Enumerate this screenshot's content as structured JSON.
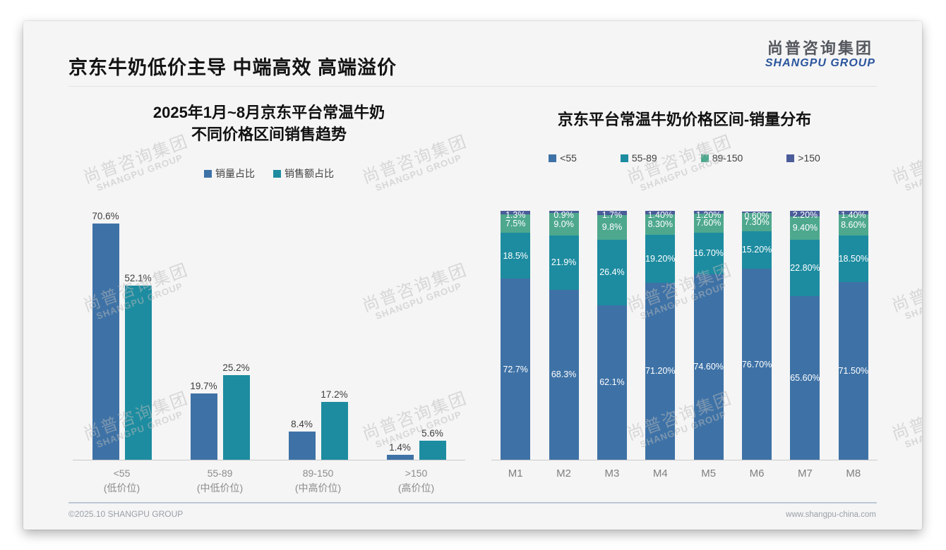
{
  "page": {
    "main_title": "京东牛奶低价主导 中端高效 高端溢价",
    "logo": {
      "cn": "尚普咨询集团",
      "en": "SHANGPU GROUP"
    },
    "watermark": {
      "cn": "尚普咨询集团",
      "en": "SHANGPU GROUP"
    },
    "footer": {
      "left": "©2025.10 SHANGPU GROUP",
      "right": "www.shangpu-china.com"
    }
  },
  "colors": {
    "blue": "#3E72A6",
    "teal": "#1D8CA0",
    "green": "#4EA88D",
    "indigo": "#4A5C99"
  },
  "chart_data": [
    {
      "type": "bar",
      "title_line1": "2025年1月~8月京东平台常温牛奶",
      "title_line2": "不同价格区间销售趋势",
      "categories": [
        "<55",
        "55-89",
        "89-150",
        ">150"
      ],
      "category_notes": [
        "(低价位)",
        "(中低价位)",
        "(中高价位)",
        "(高价位)"
      ],
      "series": [
        {
          "name": "销量占比",
          "color": "#3E72A6",
          "values": [
            70.6,
            19.7,
            8.4,
            1.4
          ],
          "labels": [
            "70.6%",
            "19.7%",
            "8.4%",
            "1.4%"
          ]
        },
        {
          "name": "销售额占比",
          "color": "#1D8CA0",
          "values": [
            52.1,
            25.2,
            17.2,
            5.6
          ],
          "labels": [
            "52.1%",
            "25.2%",
            "17.2%",
            "5.6%"
          ]
        }
      ],
      "ylim": [
        0,
        100
      ],
      "unit": "%",
      "grid": false,
      "legend_position": "top"
    },
    {
      "type": "stacked-bar",
      "title": "京东平台常温牛奶价格区间-销量分布",
      "categories": [
        "M1",
        "M2",
        "M3",
        "M4",
        "M5",
        "M6",
        "M7",
        "M8"
      ],
      "series": [
        {
          "name": "<55",
          "color": "#3E72A6",
          "values": [
            72.7,
            68.3,
            62.1,
            71.2,
            74.6,
            76.7,
            65.6,
            71.5
          ],
          "labels": [
            "72.7%",
            "68.3%",
            "62.1%",
            "71.20%",
            "74.60%",
            "76.70%",
            "65.60%",
            "71.50%"
          ]
        },
        {
          "name": "55-89",
          "color": "#1D8CA0",
          "values": [
            18.5,
            21.9,
            26.4,
            19.2,
            16.7,
            15.2,
            22.8,
            18.5
          ],
          "labels": [
            "18.5%",
            "21.9%",
            "26.4%",
            "19.20%",
            "16.70%",
            "15.20%",
            "22.80%",
            "18.50%"
          ]
        },
        {
          "name": "89-150",
          "color": "#4EA88D",
          "values": [
            7.5,
            9.0,
            9.8,
            8.3,
            7.6,
            7.3,
            9.4,
            8.6
          ],
          "labels": [
            "7.5%",
            "9.0%",
            "9.8%",
            "8.30%",
            "7.60%",
            "7.30%",
            "9.40%",
            "8.60%"
          ]
        },
        {
          "name": ">150",
          "color": "#4A5C99",
          "values": [
            1.3,
            0.9,
            1.7,
            1.4,
            1.2,
            0.6,
            2.2,
            1.4
          ],
          "labels": [
            "1.3%",
            "0.9%",
            "1.7%",
            "1.40%",
            "1.20%",
            "0.60%",
            "2.20%",
            "1.40%"
          ]
        }
      ],
      "ylim": [
        0,
        100
      ],
      "unit": "%",
      "grid": false,
      "legend_position": "top"
    }
  ]
}
